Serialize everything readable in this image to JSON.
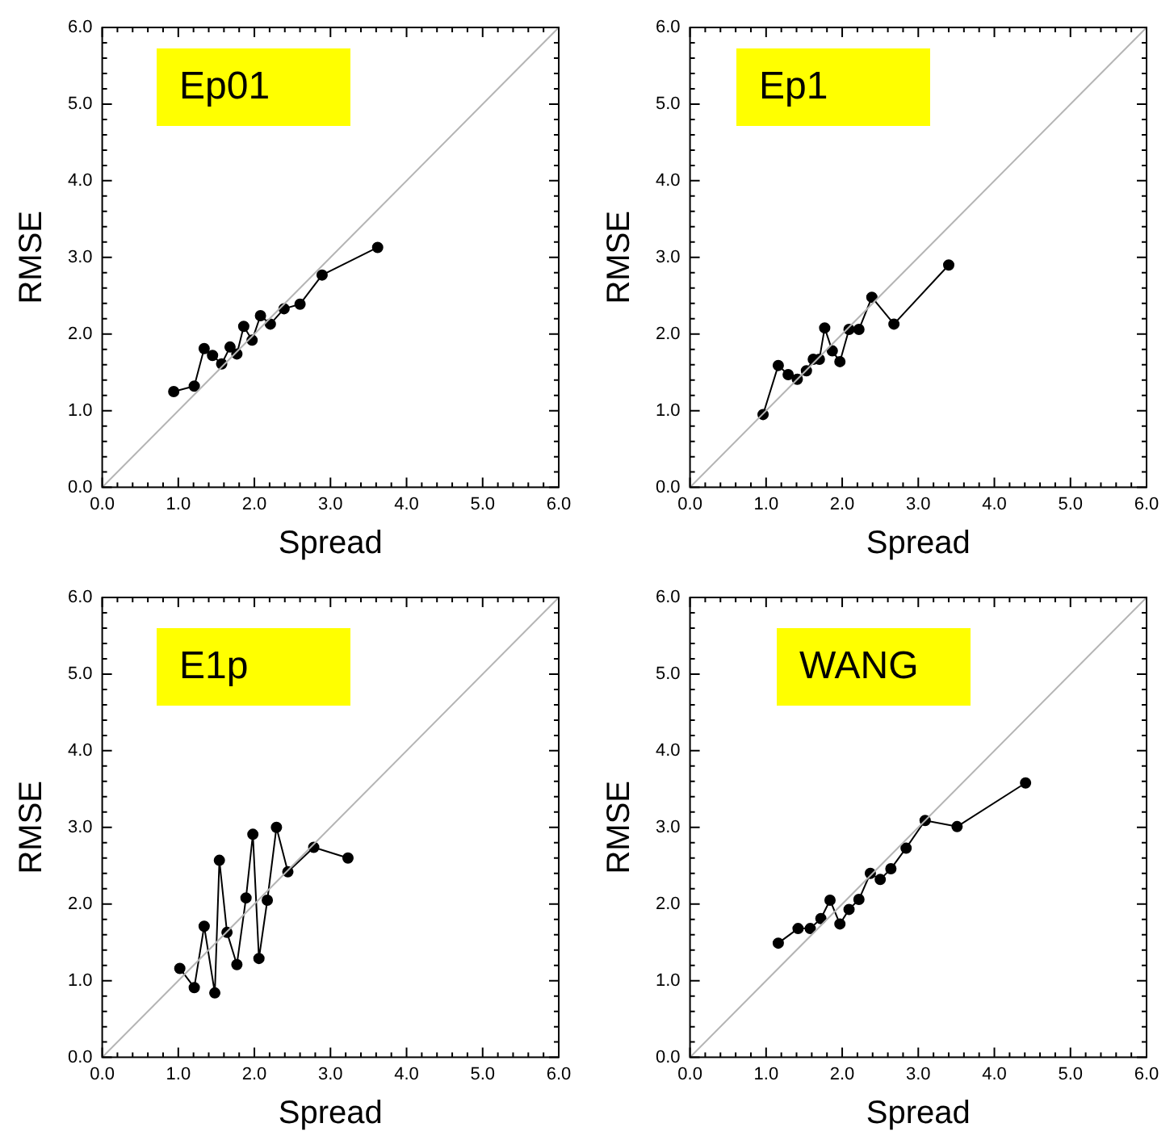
{
  "chart_data": [
    {
      "type": "line",
      "xlabel": "Spread",
      "ylabel": "RMSE",
      "annotations": [
        "Ep01"
      ],
      "xlim": [
        0,
        6
      ],
      "ylim": [
        0,
        6
      ],
      "xticks": [
        {
          "value": 0,
          "label": "0.0"
        },
        {
          "value": 1,
          "label": "1.0"
        },
        {
          "value": 2,
          "label": "2.0"
        },
        {
          "value": 3,
          "label": "3.0"
        },
        {
          "value": 4,
          "label": "4.0"
        },
        {
          "value": 5,
          "label": "5.0"
        },
        {
          "value": 6,
          "label": "6.0"
        }
      ],
      "yticks": [
        {
          "value": 0,
          "label": "0.0"
        },
        {
          "value": 1,
          "label": "1.0"
        },
        {
          "value": 2,
          "label": "2.0"
        },
        {
          "value": 3,
          "label": "3.0"
        },
        {
          "value": 4,
          "label": "4.0"
        },
        {
          "value": 5,
          "label": "5.0"
        },
        {
          "value": 6,
          "label": "6.0"
        }
      ],
      "grid": false,
      "legend": false,
      "series": [
        {
          "color": "#b4b4b4",
          "marker": "none",
          "x": [
            0,
            6
          ],
          "values": [
            0,
            6
          ]
        },
        {
          "color": "#000000",
          "marker": "circle",
          "x": [
            0.94,
            1.21,
            1.34,
            1.45,
            1.57,
            1.68,
            1.77,
            1.86,
            1.97,
            2.08,
            2.21,
            2.39,
            2.6,
            2.89,
            3.62
          ],
          "values": [
            1.25,
            1.32,
            1.81,
            1.72,
            1.61,
            1.83,
            1.74,
            2.1,
            1.92,
            2.24,
            2.13,
            2.33,
            2.39,
            2.77,
            3.13
          ]
        }
      ]
    },
    {
      "type": "line",
      "xlabel": "Spread",
      "ylabel": "RMSE",
      "annotations": [
        "Ep1"
      ],
      "xlim": [
        0,
        6
      ],
      "ylim": [
        0,
        6
      ],
      "xticks": [
        {
          "value": 0,
          "label": "0.0"
        },
        {
          "value": 1,
          "label": "1.0"
        },
        {
          "value": 2,
          "label": "2.0"
        },
        {
          "value": 3,
          "label": "3.0"
        },
        {
          "value": 4,
          "label": "4.0"
        },
        {
          "value": 5,
          "label": "5.0"
        },
        {
          "value": 6,
          "label": "6.0"
        }
      ],
      "yticks": [
        {
          "value": 0,
          "label": "0.0"
        },
        {
          "value": 1,
          "label": "1.0"
        },
        {
          "value": 2,
          "label": "2.0"
        },
        {
          "value": 3,
          "label": "3.0"
        },
        {
          "value": 4,
          "label": "4.0"
        },
        {
          "value": 5,
          "label": "5.0"
        },
        {
          "value": 6,
          "label": "6.0"
        }
      ],
      "grid": false,
      "legend": false,
      "series": [
        {
          "color": "#b4b4b4",
          "marker": "none",
          "x": [
            0,
            6
          ],
          "values": [
            0,
            6
          ]
        },
        {
          "color": "#000000",
          "marker": "circle",
          "x": [
            0.96,
            1.16,
            1.29,
            1.41,
            1.53,
            1.62,
            1.7,
            1.77,
            1.87,
            1.97,
            2.09,
            2.22,
            2.39,
            2.68,
            3.4
          ],
          "values": [
            0.95,
            1.59,
            1.47,
            1.41,
            1.52,
            1.67,
            1.67,
            2.08,
            1.78,
            1.64,
            2.06,
            2.06,
            2.48,
            2.13,
            2.9
          ]
        }
      ]
    },
    {
      "type": "line",
      "xlabel": "Spread",
      "ylabel": "RMSE",
      "annotations": [
        "E1p"
      ],
      "xlim": [
        0,
        6
      ],
      "ylim": [
        0,
        6
      ],
      "xticks": [
        {
          "value": 0,
          "label": "0.0"
        },
        {
          "value": 1,
          "label": "1.0"
        },
        {
          "value": 2,
          "label": "2.0"
        },
        {
          "value": 3,
          "label": "3.0"
        },
        {
          "value": 4,
          "label": "4.0"
        },
        {
          "value": 5,
          "label": "5.0"
        },
        {
          "value": 6,
          "label": "6.0"
        }
      ],
      "yticks": [
        {
          "value": 0,
          "label": "0.0"
        },
        {
          "value": 1,
          "label": "1.0"
        },
        {
          "value": 2,
          "label": "2.0"
        },
        {
          "value": 3,
          "label": "3.0"
        },
        {
          "value": 4,
          "label": "4.0"
        },
        {
          "value": 5,
          "label": "5.0"
        },
        {
          "value": 6,
          "label": "6.0"
        }
      ],
      "grid": false,
      "legend": false,
      "series": [
        {
          "color": "#b4b4b4",
          "marker": "none",
          "x": [
            0,
            6
          ],
          "values": [
            0,
            6
          ]
        },
        {
          "color": "#000000",
          "marker": "circle",
          "x": [
            1.02,
            1.21,
            1.34,
            1.48,
            1.54,
            1.64,
            1.77,
            1.89,
            1.98,
            2.06,
            2.17,
            2.29,
            2.44,
            2.78,
            3.23
          ],
          "values": [
            1.16,
            0.91,
            1.71,
            0.84,
            2.57,
            1.63,
            1.21,
            2.08,
            2.91,
            1.29,
            2.05,
            3.0,
            2.42,
            2.74,
            2.6
          ]
        }
      ]
    },
    {
      "type": "line",
      "xlabel": "Spread",
      "ylabel": "RMSE",
      "annotations": [
        "WANG"
      ],
      "xlim": [
        0,
        6
      ],
      "ylim": [
        0,
        6
      ],
      "xticks": [
        {
          "value": 0,
          "label": "0.0"
        },
        {
          "value": 1,
          "label": "1.0"
        },
        {
          "value": 2,
          "label": "2.0"
        },
        {
          "value": 3,
          "label": "3.0"
        },
        {
          "value": 4,
          "label": "4.0"
        },
        {
          "value": 5,
          "label": "5.0"
        },
        {
          "value": 6,
          "label": "6.0"
        }
      ],
      "yticks": [
        {
          "value": 0,
          "label": "0.0"
        },
        {
          "value": 1,
          "label": "1.0"
        },
        {
          "value": 2,
          "label": "2.0"
        },
        {
          "value": 3,
          "label": "3.0"
        },
        {
          "value": 4,
          "label": "4.0"
        },
        {
          "value": 5,
          "label": "5.0"
        },
        {
          "value": 6,
          "label": "6.0"
        }
      ],
      "grid": false,
      "legend": false,
      "series": [
        {
          "color": "#b4b4b4",
          "marker": "none",
          "x": [
            0,
            6
          ],
          "values": [
            0,
            6
          ]
        },
        {
          "color": "#000000",
          "marker": "circle",
          "x": [
            1.16,
            1.42,
            1.58,
            1.72,
            1.84,
            1.97,
            2.09,
            2.22,
            2.37,
            2.5,
            2.64,
            2.84,
            3.09,
            3.51,
            4.41
          ],
          "values": [
            1.49,
            1.68,
            1.68,
            1.81,
            2.05,
            1.74,
            1.93,
            2.06,
            2.4,
            2.32,
            2.46,
            2.73,
            3.09,
            3.01,
            3.58
          ]
        }
      ]
    }
  ]
}
